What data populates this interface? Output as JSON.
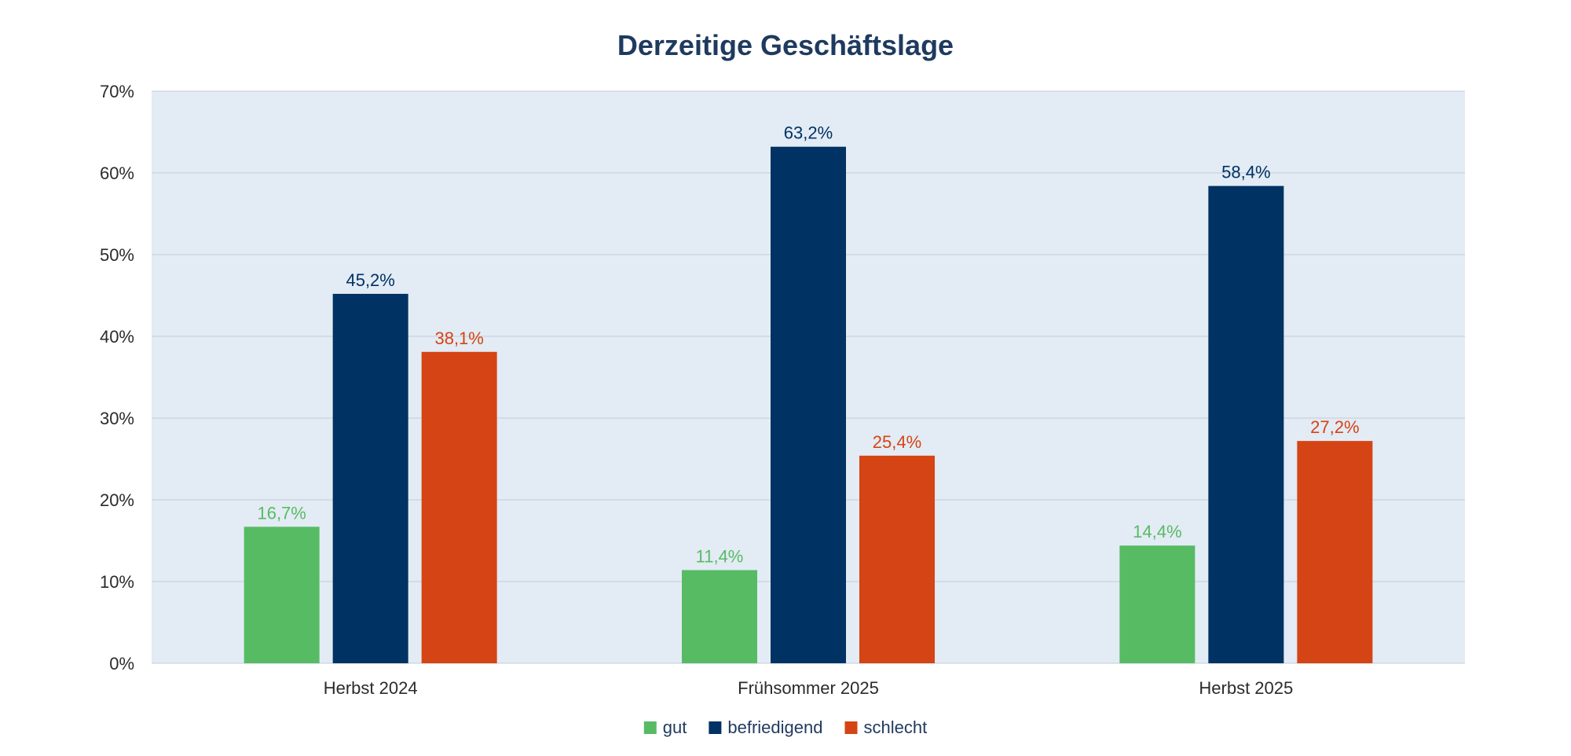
{
  "chart_data": {
    "type": "bar",
    "title": "Derzeitige Geschäftslage",
    "categories": [
      "Herbst 2024",
      "Frühsommer 2025",
      "Herbst 2025"
    ],
    "series": [
      {
        "name": "gut",
        "color": "#57bb64",
        "values": [
          16.7,
          11.4,
          14.4
        ],
        "labels": [
          "16,7%",
          "11,4%",
          "14,4%"
        ]
      },
      {
        "name": "befriedigend",
        "color": "#003264",
        "values": [
          45.2,
          63.2,
          58.4
        ],
        "labels": [
          "45,2%",
          "63,2%",
          "58,4%"
        ]
      },
      {
        "name": "schlecht",
        "color": "#d54414",
        "values": [
          38.1,
          25.4,
          27.2
        ],
        "labels": [
          "38,1%",
          "25,4%",
          "27,2%"
        ]
      }
    ],
    "ylim": [
      0,
      70
    ],
    "yticks": [
      0,
      10,
      20,
      30,
      40,
      50,
      60,
      70
    ],
    "ytick_labels": [
      "0%",
      "10%",
      "20%",
      "30%",
      "40%",
      "50%",
      "60%",
      "70%"
    ],
    "xlabel": "",
    "ylabel": "",
    "grid": true,
    "legend_position": "bottom-center",
    "plot_background": "#e3ebf4"
  }
}
